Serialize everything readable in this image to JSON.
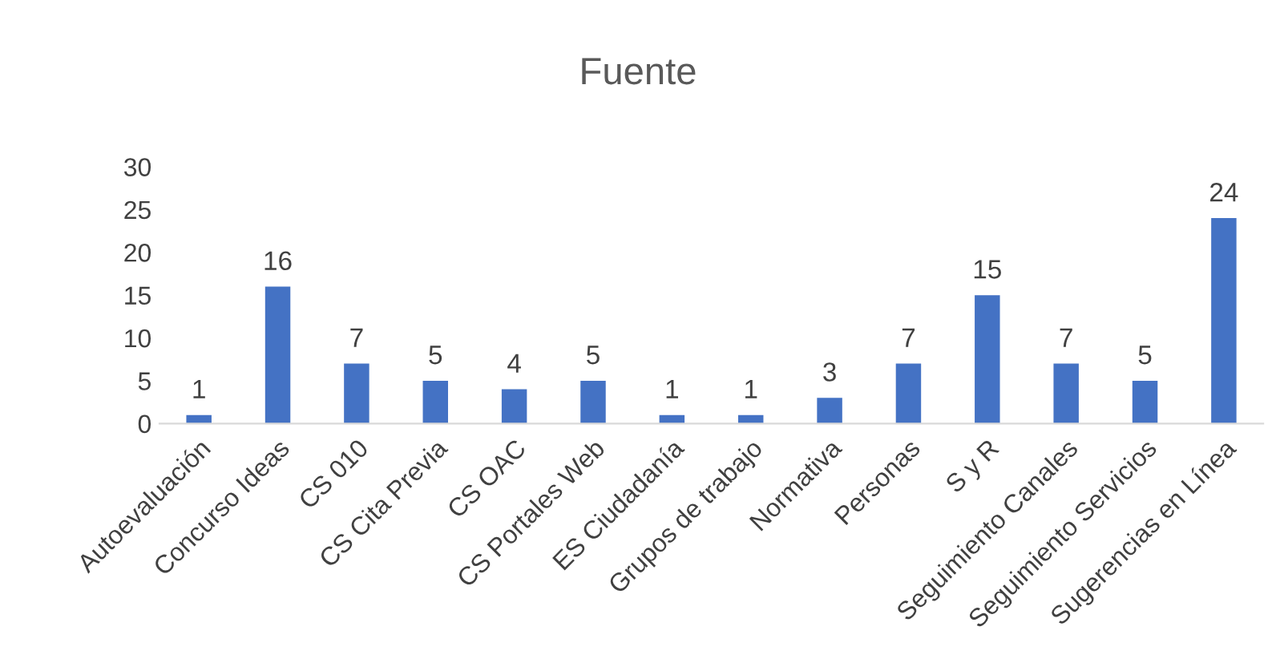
{
  "chart_data": {
    "type": "bar",
    "title": "Fuente",
    "categories": [
      "Autoevaluación",
      "Concurso Ideas",
      "CS 010",
      "CS Cita Previa",
      "CS OAC",
      "CS Portales Web",
      "ES Ciudadanía",
      "Grupos de trabajo",
      "Normativa",
      "Personas",
      "S y R",
      "Seguimiento Canales",
      "Seguimiento Servicios",
      "Sugerencias en Línea"
    ],
    "values": [
      1,
      16,
      7,
      5,
      4,
      5,
      1,
      1,
      3,
      7,
      15,
      7,
      5,
      24
    ],
    "color": "#4472c4",
    "ylim": [
      0,
      30
    ],
    "yticks": [
      0,
      5,
      10,
      15,
      20,
      25,
      30
    ],
    "data_labels": true,
    "grid": false,
    "legend": false
  }
}
